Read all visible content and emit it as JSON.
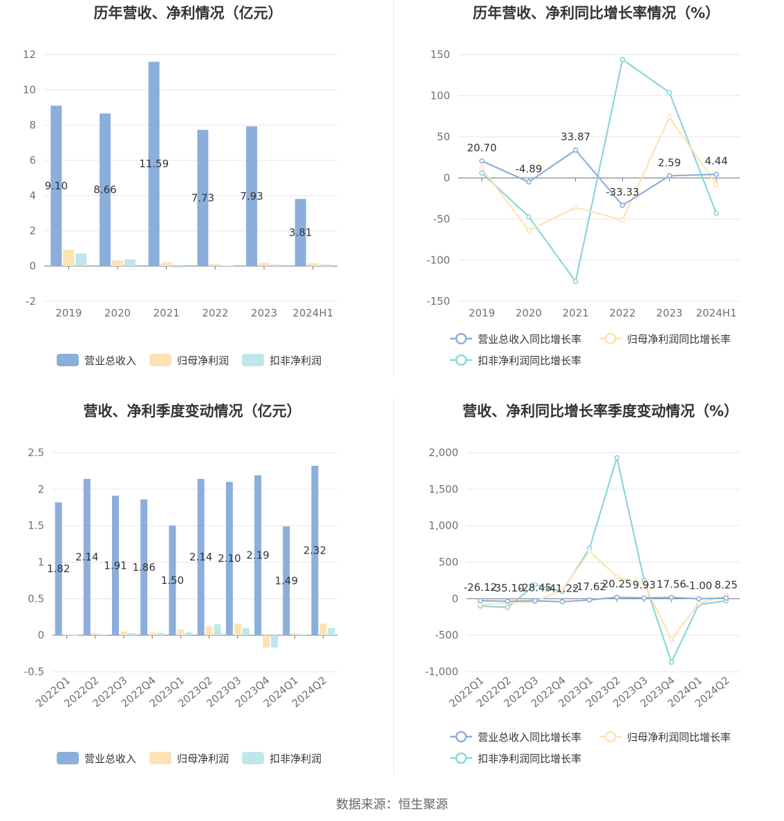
{
  "footer": "数据来源：恒生聚源",
  "colors": {
    "revenue": "#8caedb",
    "parent_np": "#fde3b3",
    "deducted_np": "#bee7ec",
    "revenue_line": "#8caedb",
    "parent_line": "#fde3b3",
    "deducted_line": "#8ad6da",
    "grid": "#e6e6e6",
    "axis": "#6e7079"
  },
  "chart_data": [
    {
      "type": "bar",
      "title": "历年营收、净利情况（亿元）",
      "categories": [
        "2019",
        "2020",
        "2021",
        "2022",
        "2023",
        "2024H1"
      ],
      "ylim": [
        -2,
        12
      ],
      "yticks": [
        "12",
        "10",
        "8",
        "6",
        "4",
        "2",
        "0",
        "-2"
      ],
      "ytick_values": [
        12,
        10,
        8,
        6,
        4,
        2,
        0,
        -2
      ],
      "legend": [
        "营业总收入",
        "归母净利润",
        "扣非净利润"
      ],
      "legend_position": "bottom",
      "series": [
        {
          "name": "营业总收入",
          "values": [
            9.1,
            8.66,
            11.59,
            7.73,
            7.93,
            3.81
          ],
          "labels": [
            "9.10",
            "8.66",
            "11.59",
            "7.73",
            "7.93",
            "3.81"
          ]
        },
        {
          "name": "归母净利润",
          "values": [
            0.93,
            0.33,
            0.21,
            0.11,
            0.18,
            0.17
          ]
        },
        {
          "name": "扣非净利润",
          "values": [
            0.71,
            0.38,
            -0.09,
            0.03,
            0.09,
            0.09
          ]
        }
      ]
    },
    {
      "type": "line",
      "title": "历年营收、净利同比增长率情况（%）",
      "categories": [
        "2019",
        "2020",
        "2021",
        "2022",
        "2023",
        "2024H1"
      ],
      "ylim": [
        -150,
        150
      ],
      "yticks": [
        "150",
        "100",
        "50",
        "0",
        "-50",
        "-100",
        "-150"
      ],
      "ytick_values": [
        150,
        100,
        50,
        0,
        -50,
        -100,
        -150
      ],
      "legend": [
        "营业总收入同比增长率",
        "归母净利润同比增长率",
        "扣非净利润同比增长率"
      ],
      "legend_position": "bottom",
      "series": [
        {
          "name": "营业总收入同比增长率",
          "values": [
            20.7,
            -4.89,
            33.87,
            -33.33,
            2.59,
            4.44
          ],
          "labels": [
            "20.70",
            "-4.89",
            "33.87",
            "-33.33",
            "2.59",
            "4.44"
          ]
        },
        {
          "name": "归母净利润同比增长率",
          "values": [
            12,
            -64,
            -36,
            -51,
            74,
            -8
          ]
        },
        {
          "name": "扣非净利润同比增长率",
          "values": [
            6,
            -47,
            -126,
            144,
            104,
            -43
          ]
        }
      ]
    },
    {
      "type": "bar",
      "title": "营收、净利季度变动情况（亿元）",
      "categories": [
        "2022Q1",
        "2022Q2",
        "2022Q3",
        "2022Q4",
        "2023Q1",
        "2023Q2",
        "2023Q3",
        "2023Q4",
        "2024Q1",
        "2024Q2"
      ],
      "ylim": [
        -0.5,
        2.5
      ],
      "yticks": [
        "2.5",
        "2",
        "1.5",
        "1",
        "0.5",
        "0",
        "-0.5"
      ],
      "ytick_values": [
        2.5,
        2,
        1.5,
        1,
        0.5,
        0,
        -0.5
      ],
      "legend": [
        "营业总收入",
        "归母净利润",
        "扣非净利润"
      ],
      "legend_position": "bottom",
      "series": [
        {
          "name": "营业总收入",
          "values": [
            1.82,
            2.14,
            1.91,
            1.86,
            1.5,
            2.14,
            2.1,
            2.19,
            1.49,
            2.32
          ],
          "labels": [
            "1.82",
            "2.14",
            "1.91",
            "1.86",
            "1.50",
            "2.14",
            "2.10",
            "2.19",
            "1.49",
            "2.32"
          ]
        },
        {
          "name": "归母净利润",
          "values": [
            0.01,
            0.03,
            0.05,
            0.04,
            0.08,
            0.12,
            0.16,
            -0.17,
            0.03,
            0.16
          ]
        },
        {
          "name": "扣非净利润",
          "values": [
            0.005,
            0.01,
            0.03,
            0.03,
            0.04,
            0.15,
            0.1,
            -0.17,
            0.01,
            0.1
          ]
        }
      ]
    },
    {
      "type": "line",
      "title": "营收、净利同比增长率季度变动情况（%）",
      "categories": [
        "2022Q1",
        "2022Q2",
        "2022Q3",
        "2022Q4",
        "2023Q1",
        "2023Q2",
        "2023Q3",
        "2023Q4",
        "2024Q1",
        "2024Q2"
      ],
      "ylim": [
        -1000,
        2000
      ],
      "yticks": [
        "2,000",
        "1,500",
        "1,000",
        "500",
        "0",
        "-500",
        "-1,000"
      ],
      "ytick_values": [
        2000,
        1500,
        1000,
        500,
        0,
        -500,
        -1000
      ],
      "legend": [
        "营业总收入同比增长率",
        "归母净利润同比增长率",
        "扣非净利润同比增长率"
      ],
      "legend_position": "bottom",
      "series": [
        {
          "name": "营业总收入同比增长率",
          "values": [
            -26.12,
            -35.1,
            -28.45,
            -41.22,
            -17.62,
            20.25,
            9.93,
            17.56,
            -1.0,
            8.25
          ],
          "labels": [
            "-26.12",
            "-35.10",
            "-28.45",
            "-41.22",
            "-17.62",
            "20.25",
            "9.93",
            "17.56",
            "-1.00",
            "8.25"
          ]
        },
        {
          "name": "归母净利润同比增长率",
          "values": [
            -80,
            -60,
            -40,
            120,
            650,
            300,
            200,
            -560,
            -60,
            40
          ]
        },
        {
          "name": "扣非净利润同比增长率",
          "values": [
            -100,
            -120,
            190,
            100,
            690,
            1930,
            250,
            -870,
            -80,
            -30
          ]
        }
      ]
    }
  ]
}
